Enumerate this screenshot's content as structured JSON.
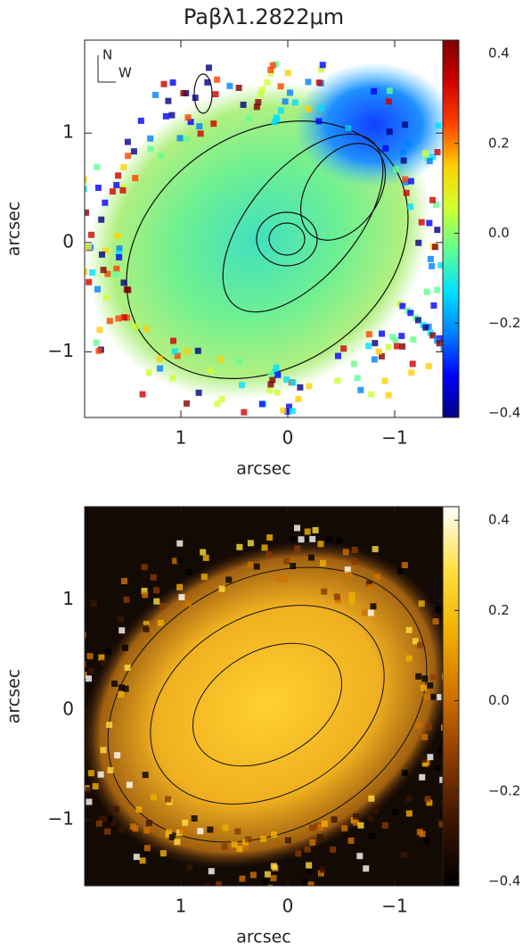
{
  "chart_data": [
    {
      "type": "image",
      "title": "Paβλ1.2822μm",
      "xlabel": "arcsec",
      "ylabel": "arcsec",
      "compass": {
        "north": "N",
        "west": "W"
      },
      "xlim": [
        1.9,
        -1.45
      ],
      "ylim": [
        -1.6,
        1.85
      ],
      "xticks": [
        1,
        0,
        {
          "value": -1,
          "label": "−1"
        }
      ],
      "yticks": [
        {
          "value": -1,
          "label": "−1"
        },
        0,
        1
      ],
      "colorbar": {
        "lim": [
          -0.41,
          0.43
        ],
        "ticks": [
          {
            "value": -0.4,
            "label": "−0.4"
          },
          {
            "value": -0.2,
            "label": "−0.2"
          },
          {
            "value": 0,
            "label": "0.0"
          },
          0.2,
          0.4
        ],
        "colors": [
          "#00007f",
          "#0000ff",
          "#0080ff",
          "#00e0ff",
          "#60ff90",
          "#d0ff30",
          "#ffd000",
          "#ff4000",
          "#d00000",
          "#7f0000"
        ]
      },
      "background": "#ffffff"
    },
    {
      "type": "image",
      "xlabel": "arcsec",
      "ylabel": "arcsec",
      "xlim": [
        1.9,
        -1.45
      ],
      "ylim": [
        -1.6,
        1.85
      ],
      "xticks": [
        1,
        0,
        {
          "value": -1,
          "label": "−1"
        }
      ],
      "yticks": [
        {
          "value": -1,
          "label": "−1"
        },
        0,
        1
      ],
      "colorbar": {
        "lim": [
          -0.41,
          0.43
        ],
        "ticks": [
          {
            "value": -0.4,
            "label": "−0.4"
          },
          {
            "value": -0.2,
            "label": "−0.2"
          },
          {
            "value": 0,
            "label": "0.0"
          },
          0.2,
          0.4
        ],
        "colors": [
          "#000000",
          "#3a1400",
          "#8a3a00",
          "#d07000",
          "#f0b000",
          "#ffe040",
          "#ffffff"
        ]
      },
      "background": "#140a04"
    }
  ]
}
